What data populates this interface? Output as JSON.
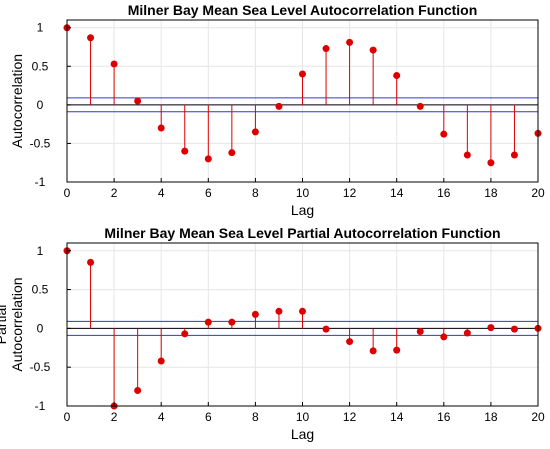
{
  "chart_data": [
    {
      "type": "stem",
      "title": "Milner Bay Mean Sea Level Autocorrelation Function",
      "xlabel": "Lag",
      "ylabel": [
        "Autocorrelation"
      ],
      "xlim": [
        0,
        20
      ],
      "ylim": [
        -1,
        1.1
      ],
      "xticks": [
        "0",
        "2",
        "4",
        "6",
        "8",
        "10",
        "12",
        "14",
        "16",
        "18",
        "20"
      ],
      "yticks": [
        "-1",
        "-0.5",
        "0",
        "0.5",
        "1"
      ],
      "grid": true,
      "lags": [
        0,
        1,
        2,
        3,
        4,
        5,
        6,
        7,
        8,
        9,
        10,
        11,
        12,
        13,
        14,
        15,
        16,
        17,
        18,
        19,
        20
      ],
      "values": [
        1.0,
        0.87,
        0.53,
        0.05,
        -0.3,
        -0.6,
        -0.7,
        -0.62,
        -0.35,
        -0.02,
        0.4,
        0.73,
        0.81,
        0.71,
        0.38,
        -0.02,
        -0.38,
        -0.65,
        -0.75,
        -0.65,
        -0.37
      ],
      "bounds": [
        0.09,
        -0.09
      ],
      "colors": {
        "stem": "#dd0000",
        "bound": "#3030e0",
        "zero": "#000000"
      }
    },
    {
      "type": "stem",
      "title": "Milner Bay Mean Sea Level Partial Autocorrelation Function",
      "xlabel": "Lag",
      "ylabel": [
        "Partial",
        "Autocorrelation"
      ],
      "xlim": [
        0,
        20
      ],
      "ylim": [
        -1,
        1.1
      ],
      "xticks": [
        "0",
        "2",
        "4",
        "6",
        "8",
        "10",
        "12",
        "14",
        "16",
        "18",
        "20"
      ],
      "yticks": [
        "-1",
        "-0.5",
        "0",
        "0.5",
        "1"
      ],
      "grid": true,
      "lags": [
        0,
        1,
        2,
        3,
        4,
        5,
        6,
        7,
        8,
        9,
        10,
        11,
        12,
        13,
        14,
        15,
        16,
        17,
        18,
        19,
        20
      ],
      "values": [
        1.0,
        0.85,
        -1.0,
        -0.8,
        -0.42,
        -0.07,
        0.08,
        0.08,
        0.18,
        0.22,
        0.22,
        -0.01,
        -0.17,
        -0.29,
        -0.28,
        -0.04,
        -0.11,
        -0.06,
        0.01,
        -0.01,
        0.0
      ],
      "bounds": [
        0.09,
        -0.09
      ],
      "colors": {
        "stem": "#dd0000",
        "bound": "#3030e0",
        "zero": "#000000"
      }
    }
  ]
}
